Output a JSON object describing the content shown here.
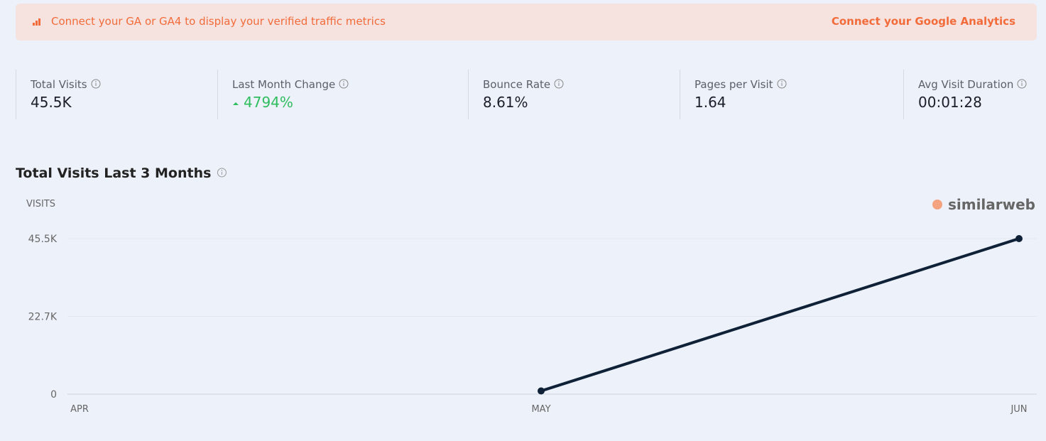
{
  "banner": {
    "text": "Connect your GA or GA4 to display your verified traffic metrics",
    "link": "Connect your Google Analytics"
  },
  "metrics": [
    {
      "label": "Total Visits",
      "value": "45.5K"
    },
    {
      "label": "Last Month Change",
      "value": "4794%"
    },
    {
      "label": "Bounce Rate",
      "value": "8.61%"
    },
    {
      "label": "Pages per Visit",
      "value": "1.64"
    },
    {
      "label": "Avg Visit Duration",
      "value": "00:01:28"
    }
  ],
  "chart_data": {
    "type": "line",
    "title": "Total Visits Last 3 Months",
    "y_label": "VISITS",
    "watermark": "similarweb",
    "categories": [
      "APR",
      "MAY",
      "JUN"
    ],
    "series": [
      {
        "color": "#0f2137",
        "values": [
          null,
          930,
          45500
        ]
      }
    ],
    "ylim": [
      0,
      45500
    ],
    "yticks": [
      0,
      {
        "value": 22750,
        "label": "22.7K"
      },
      {
        "value": 45500,
        "label": "45.5K"
      }
    ],
    "grid": true
  }
}
